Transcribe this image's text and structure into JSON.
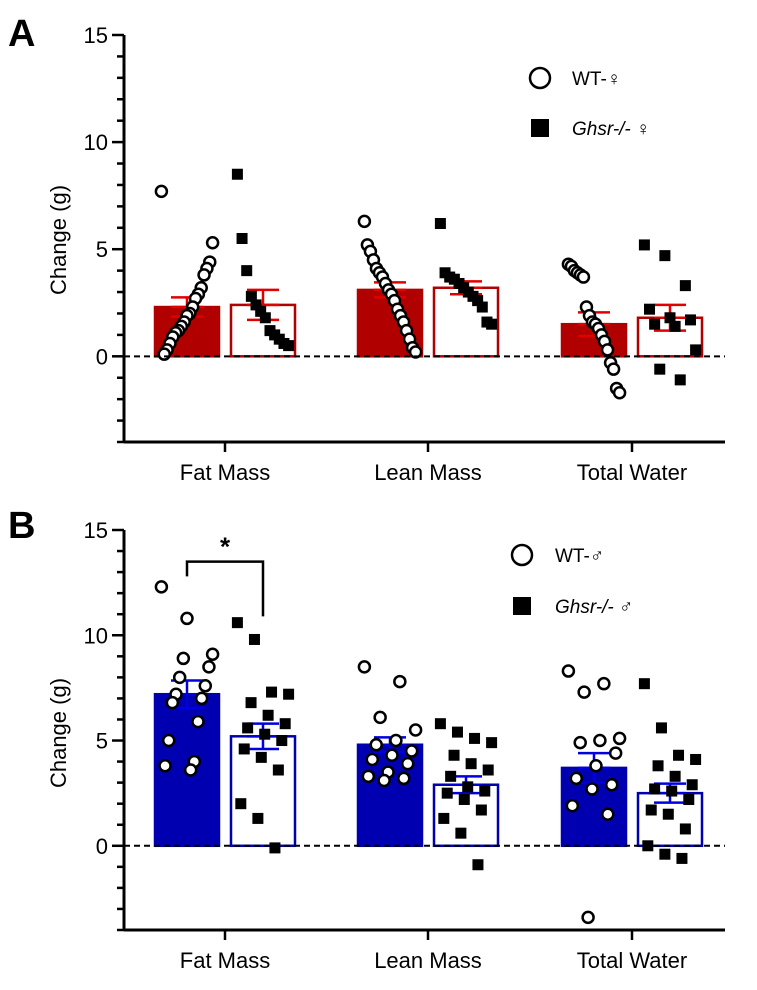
{
  "chart_data": [
    {
      "type": "bar",
      "panel": "A",
      "ylabel": "Change (g)",
      "ylim": [
        -4,
        15
      ],
      "yticks": [
        0,
        5,
        10,
        15
      ],
      "categories": [
        "Fat Mass",
        "Lean Mass",
        "Total Water"
      ],
      "colors": {
        "accent": "#b00000",
        "open": "#ffffff",
        "error": "#e00000"
      },
      "legend": [
        {
          "label": "WT-♀",
          "marker": "circle"
        },
        {
          "label": "Ghsr-/-",
          "symbol": "♀",
          "marker": "square"
        }
      ],
      "series": [
        {
          "name": "WT-♀",
          "values": [
            2.3,
            3.1,
            1.5
          ],
          "sem": [
            0.45,
            0.35,
            0.55
          ],
          "points": [
            [
              7.7,
              5.3,
              4.4,
              4.1,
              3.8,
              3.2,
              2.9,
              2.7,
              2.3,
              2.0,
              1.9,
              1.6,
              1.4,
              1.2,
              1.1,
              0.9,
              0.6,
              0.3,
              0.1
            ],
            [
              6.3,
              5.2,
              4.9,
              4.5,
              4.1,
              3.9,
              3.7,
              3.4,
              3.1,
              2.9,
              2.6,
              2.2,
              1.9,
              1.6,
              1.2,
              0.8,
              0.4,
              0.2
            ],
            [
              4.3,
              4.2,
              4.0,
              3.9,
              3.8,
              3.7,
              2.3,
              1.9,
              1.6,
              1.5,
              1.3,
              1.0,
              0.7,
              0.3,
              -0.3,
              -0.6,
              -1.5,
              -1.7
            ]
          ]
        },
        {
          "name": "Ghsr-/-♀",
          "values": [
            2.4,
            3.2,
            1.8
          ],
          "sem": [
            0.7,
            0.3,
            0.6
          ],
          "points": [
            [
              8.5,
              5.5,
              4.0,
              2.8,
              2.4,
              2.1,
              1.8,
              1.2,
              1.0,
              0.8,
              0.6,
              0.5
            ],
            [
              6.2,
              3.9,
              3.7,
              3.6,
              3.4,
              3.2,
              3.0,
              2.8,
              2.6,
              2.3,
              1.6,
              1.5
            ],
            [
              5.2,
              4.7,
              3.3,
              2.2,
              1.8,
              1.7,
              1.5,
              1.4,
              0.3,
              -0.6,
              -1.1
            ]
          ]
        }
      ]
    },
    {
      "type": "bar",
      "panel": "B",
      "ylabel": "Change (g)",
      "ylim": [
        -4,
        15
      ],
      "yticks": [
        0,
        5,
        10,
        15
      ],
      "categories": [
        "Fat Mass",
        "Lean Mass",
        "Total Water"
      ],
      "colors": {
        "accent": "#0000b0",
        "open": "#ffffff",
        "error": "#0000e0"
      },
      "legend": [
        {
          "label": "WT-♂",
          "marker": "circle"
        },
        {
          "label": "Ghsr-/-",
          "symbol": "♂",
          "marker": "square"
        }
      ],
      "significance": {
        "label": "*",
        "category": "Fat Mass"
      },
      "series": [
        {
          "name": "WT-♂",
          "values": [
            7.2,
            4.8,
            3.7
          ],
          "sem": [
            0.65,
            0.35,
            0.7
          ],
          "points": [
            [
              12.3,
              10.8,
              9.1,
              8.9,
              8.5,
              8.0,
              7.6,
              7.2,
              7.0,
              6.8,
              5.9,
              5.0,
              4.0,
              3.8,
              3.6
            ],
            [
              8.5,
              7.8,
              6.1,
              5.5,
              5.0,
              4.8,
              4.5,
              4.3,
              4.1,
              3.9,
              3.5,
              3.3,
              3.2,
              3.1
            ],
            [
              8.3,
              7.7,
              7.3,
              5.1,
              5.0,
              4.9,
              4.4,
              3.8,
              3.2,
              2.9,
              2.7,
              1.9,
              1.5,
              -3.4
            ]
          ]
        },
        {
          "name": "Ghsr-/-♂",
          "values": [
            5.2,
            2.9,
            2.5
          ],
          "sem": [
            0.6,
            0.4,
            0.45
          ],
          "points": [
            [
              10.6,
              9.8,
              7.3,
              7.2,
              6.8,
              6.2,
              5.8,
              5.6,
              5.3,
              5.0,
              4.6,
              4.2,
              3.6,
              2.0,
              1.3,
              -0.1
            ],
            [
              5.8,
              5.4,
              5.1,
              4.9,
              4.3,
              3.9,
              3.6,
              3.3,
              2.8,
              2.6,
              2.5,
              2.2,
              1.7,
              1.3,
              0.6,
              -0.9
            ],
            [
              7.7,
              5.6,
              4.3,
              4.1,
              3.8,
              3.3,
              2.9,
              2.7,
              2.6,
              2.2,
              1.7,
              1.5,
              0.8,
              0.0,
              -0.4,
              -0.6
            ]
          ]
        }
      ]
    }
  ]
}
